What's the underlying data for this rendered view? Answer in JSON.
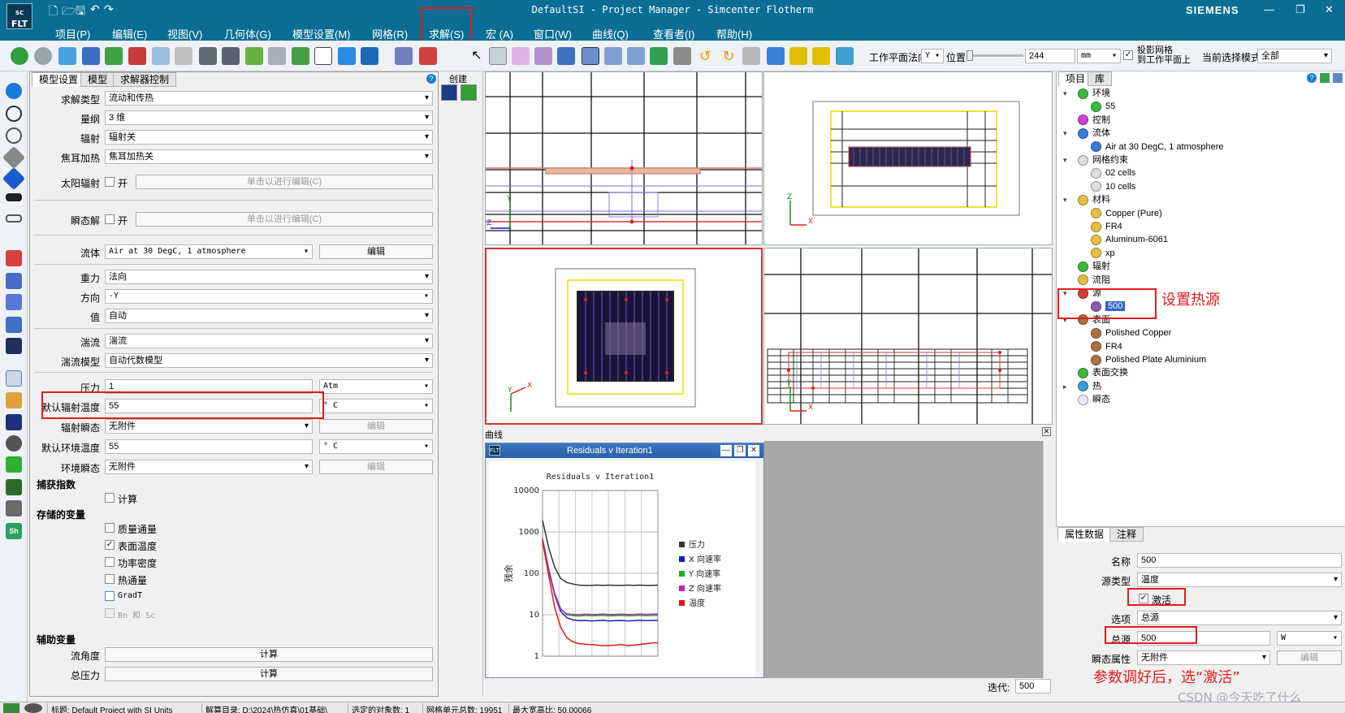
{
  "window": {
    "title": "DefaultSI - Project Manager - Simcenter Flotherm",
    "brand": "SIEMENS",
    "logo": "FLT",
    "controls": [
      "—",
      "❐",
      "✕"
    ]
  },
  "menu": [
    "项目(P)",
    "编辑(E)",
    "视图(V)",
    "几何体(G)",
    "模型设置(M)",
    "网格(R)",
    "求解(S)",
    "宏 (A)",
    "窗口(W)",
    "曲线(Q)",
    "查看者(I)",
    "帮助(H)"
  ],
  "toolbar": {
    "plane_label": "工作平面法向",
    "plane_value": "Y",
    "position_label": "位置",
    "position_value": "244",
    "unit_value": "mm",
    "project_grid_label": "投影网格",
    "project_grid_label2": "到工作平面上",
    "selection_mode_label": "当前选择模式",
    "selection_mode_value": "全部"
  },
  "panel": {
    "tabs": [
      "模型设置",
      "模型",
      "求解器控制"
    ],
    "creator_label": "创建",
    "solution_type": {
      "label": "求解类型",
      "value": "流动和传热"
    },
    "dimension": {
      "label": "量纲",
      "value": "3 维"
    },
    "radiation": {
      "label": "辐射",
      "value": "辐射关"
    },
    "joule": {
      "label": "焦耳加热",
      "value": "焦耳加热关"
    },
    "solar": {
      "label": "太阳辐射",
      "check_label": "开",
      "button": "单击以进行编辑(C)"
    },
    "transient": {
      "label": "瞬态解",
      "check_label": "开",
      "button": "单击以进行编辑(C)"
    },
    "fluid": {
      "label": "流体",
      "value": "Air at 30 DegC, 1 atmosphere",
      "button": "编辑"
    },
    "gravity": {
      "label": "重力",
      "value": "法向"
    },
    "direction": {
      "label": "方向",
      "value": "-Y"
    },
    "magnitude": {
      "label": "值",
      "value": "自动"
    },
    "turbulence": {
      "label": "湍流",
      "value": "湍流"
    },
    "turb_model": {
      "label": "湍流模型",
      "value": "自动代数模型"
    },
    "pressure": {
      "label": "压力",
      "value": "1",
      "unit": "Atm"
    },
    "default_rad_temp": {
      "label": "默认辐射温度",
      "value": "55",
      "unit": "° C"
    },
    "rad_transient": {
      "label": "辐射瞬态",
      "value": "无附件",
      "button": "编辑"
    },
    "default_amb_temp": {
      "label": "默认环境温度",
      "value": "55",
      "unit": "° C"
    },
    "amb_transient": {
      "label": "环境瞬态",
      "value": "无附件",
      "button": "编辑"
    },
    "capture_index": {
      "heading": "捕获指数",
      "items": [
        "计算"
      ]
    },
    "stored_vars": {
      "heading": "存储的变量",
      "items": [
        "质量通量",
        "表面温度",
        "功率密度",
        "热通量",
        "GradT",
        "Bn 和 Sc"
      ]
    },
    "aux_vars": {
      "heading": "辅助变量",
      "flow_angle": "流角度",
      "total_pressure": "总压力",
      "calc": "计算"
    }
  },
  "curves": {
    "header": "曲线",
    "window_title": "Residuals v Iteration1",
    "iterations_label": "迭代:",
    "iterations_value": "500"
  },
  "chart_data": {
    "type": "line",
    "title": "Residuals v Iteration1",
    "ylabel": "残余",
    "yscale": "log",
    "ylim": [
      1,
      10000
    ],
    "yticks": [
      "10000",
      "1000",
      "100",
      "10",
      "1"
    ],
    "xlim": [
      0,
      500
    ],
    "grid": true,
    "legend_position": "right",
    "series": [
      {
        "name": "压力",
        "color": "#333333",
        "values": [
          1900,
          420,
          140,
          75,
          60,
          55,
          52,
          51,
          51,
          52,
          51,
          52,
          51,
          51,
          52,
          51,
          52,
          51,
          51,
          52
        ]
      },
      {
        "name": "X 向速率",
        "color": "#1c1cb8",
        "values": [
          650,
          120,
          30,
          12,
          8.5,
          7.5,
          7.2,
          7.3,
          7.1,
          7.2,
          7.4,
          7.1,
          7.2,
          7.3,
          7.1,
          7.2,
          7.4,
          7.2,
          7.3,
          7.4
        ]
      },
      {
        "name": "Y 向速率",
        "color": "#1fb01f",
        "values": [
          700,
          130,
          33,
          14,
          10,
          9.5,
          9.3,
          9.6,
          9.4,
          9.5,
          9.7,
          9.4,
          9.5,
          9.6,
          9.4,
          9.5,
          9.7,
          9.5,
          9.6,
          9.7
        ]
      },
      {
        "name": "Z 向速率",
        "color": "#c020c0",
        "values": [
          680,
          125,
          32,
          13.5,
          10.5,
          10.2,
          10,
          10.3,
          10.1,
          10.2,
          10.4,
          10.1,
          10.2,
          10.3,
          10.1,
          10.2,
          10.4,
          10.2,
          10.3,
          10.4
        ]
      },
      {
        "name": "温度",
        "color": "#e01818",
        "values": [
          600,
          90,
          15,
          5,
          2.8,
          2.2,
          2,
          1.95,
          1.9,
          1.85,
          1.8,
          1.8,
          1.85,
          1.9,
          1.8,
          1.85,
          1.9,
          2,
          2.1,
          2.1
        ]
      }
    ]
  },
  "project_tree": {
    "tabs": [
      "项目",
      "库"
    ],
    "items": [
      {
        "label": "环境",
        "depth": 0,
        "icon": "environment-icon",
        "color": "#3cb83c",
        "exp": "▾"
      },
      {
        "label": "55",
        "depth": 1,
        "icon": "environment-icon",
        "color": "#3cb83c"
      },
      {
        "label": "控制",
        "depth": 0,
        "icon": "control-icon",
        "color": "#d040d0"
      },
      {
        "label": "流体",
        "depth": 0,
        "icon": "fluid-icon",
        "color": "#3a7bd8",
        "exp": "▾"
      },
      {
        "label": "Air at 30 DegC, 1 atmosphere",
        "depth": 1,
        "icon": "fluid-icon",
        "color": "#3a7bd8"
      },
      {
        "label": "网格约束",
        "depth": 0,
        "icon": "grid-icon",
        "color": "#dddddd",
        "exp": "▾"
      },
      {
        "label": "02 cells",
        "depth": 1,
        "icon": "grid-icon",
        "color": "#dddddd"
      },
      {
        "label": "10 cells",
        "depth": 1,
        "icon": "grid-icon",
        "color": "#dddddd"
      },
      {
        "label": "材料",
        "depth": 0,
        "icon": "material-icon",
        "color": "#e8c040",
        "exp": "▾"
      },
      {
        "label": "Copper (Pure)",
        "depth": 1,
        "icon": "material-icon",
        "color": "#e8c040"
      },
      {
        "label": "FR4",
        "depth": 1,
        "icon": "material-icon",
        "color": "#e8c040"
      },
      {
        "label": "Aluminum-6061",
        "depth": 1,
        "icon": "material-icon",
        "color": "#e8c040"
      },
      {
        "label": "xp",
        "depth": 1,
        "icon": "material-icon",
        "color": "#e8c040"
      },
      {
        "label": "辐射",
        "depth": 0,
        "icon": "radiation-icon",
        "color": "#3cb83c"
      },
      {
        "label": "流阻",
        "depth": 0,
        "icon": "resistance-icon",
        "color": "#e0c040"
      },
      {
        "label": "源",
        "depth": 0,
        "icon": "source-icon",
        "color": "#d83a3a",
        "exp": "▾"
      },
      {
        "label": "500",
        "depth": 1,
        "icon": "source-icon",
        "color": "#8a5ab8",
        "selected": true
      },
      {
        "label": "表面",
        "depth": 0,
        "icon": "surface-icon",
        "color": "#b07040",
        "exp": "▾"
      },
      {
        "label": "Polished Copper",
        "depth": 1,
        "icon": "surface-icon",
        "color": "#b07040"
      },
      {
        "label": "FR4",
        "depth": 1,
        "icon": "surface-icon",
        "color": "#b07040"
      },
      {
        "label": "Polished Plate Aluminium",
        "depth": 1,
        "icon": "surface-icon",
        "color": "#b07040"
      },
      {
        "label": "表面交换",
        "depth": 0,
        "icon": "surface-exchange-icon",
        "color": "#3cb83c"
      },
      {
        "label": "热",
        "depth": 0,
        "icon": "thermal-icon",
        "color": "#3a9ad8",
        "exp": "▸"
      },
      {
        "label": "瞬态",
        "depth": 0,
        "icon": "transient-icon",
        "color": "#e8e8ff"
      }
    ]
  },
  "properties": {
    "tabs": [
      "属性数据",
      "注释"
    ],
    "name": {
      "label": "名称",
      "value": "500"
    },
    "source_type": {
      "label": "源类型",
      "value": "温度"
    },
    "activate": {
      "label": "激活"
    },
    "option": {
      "label": "选项",
      "value": "总源"
    },
    "total_source": {
      "label": "总源",
      "value": "500",
      "unit": "W"
    },
    "transient_attr": {
      "label": "瞬态属性",
      "value": "无附件",
      "button": "编辑"
    }
  },
  "annotations": {
    "set_source": "设置热源",
    "after_tuning": "参数调好后，选“激活”",
    "watermark": "CSDN @今天吃了什么"
  },
  "statusbar": [
    "标题: Default Project with SI Units",
    "解算目录: D:\\2024\\热仿真\\01基础\\",
    "选定的对象数: 1",
    "网格单元总数: 19951",
    "最大宽高比: 50.00066"
  ]
}
